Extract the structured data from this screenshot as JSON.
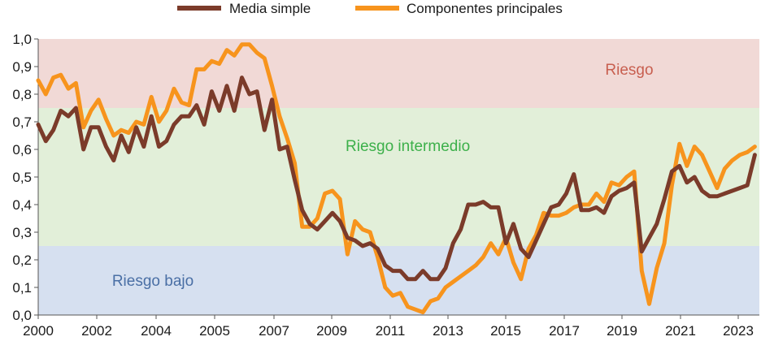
{
  "chart_data": {
    "type": "line",
    "legend": {
      "placement": "top",
      "items": [
        {
          "label": "Media simple",
          "color": "#7b3b2a"
        },
        {
          "label": "Componentes principales",
          "color": "#f7941d"
        }
      ]
    },
    "zones": [
      {
        "label": "Riesgo",
        "from": 0.75,
        "to": 1.0,
        "color": "#f1d9d6",
        "label_color": "#c85f50"
      },
      {
        "label": "Riesgo intermedio",
        "from": 0.25,
        "to": 0.75,
        "color": "#e2efd9",
        "label_color": "#3cb04a"
      },
      {
        "label": "Riesgo bajo",
        "from": 0.0,
        "to": 0.25,
        "color": "#d6e0f0",
        "label_color": "#4a6fa5"
      }
    ],
    "ylim": [
      0,
      1
    ],
    "xlim": [
      2000,
      2023.9
    ],
    "y_ticks": [
      "0,0",
      "0,1",
      "0,2",
      "0,3",
      "0,4",
      "0,5",
      "0,6",
      "0,7",
      "0,8",
      "0,9",
      "1,0"
    ],
    "x_ticks": [
      "2000",
      "2002",
      "2004",
      "2005",
      "2007",
      "2009",
      "2011",
      "2013",
      "2015",
      "2017",
      "2019",
      "2021",
      "2023"
    ],
    "series": [
      {
        "name": "Media simple",
        "color": "#7b3b2a",
        "x": [
          2000.0,
          2000.25,
          2000.5,
          2000.75,
          2001.0,
          2001.25,
          2001.5,
          2001.75,
          2002.0,
          2002.25,
          2002.5,
          2002.75,
          2003.0,
          2003.25,
          2003.5,
          2003.75,
          2004.0,
          2004.25,
          2004.5,
          2004.75,
          2005.0,
          2005.25,
          2005.5,
          2005.75,
          2006.0,
          2006.25,
          2006.5,
          2006.75,
          2007.0,
          2007.25,
          2007.5,
          2007.75,
          2008.0,
          2008.25,
          2008.5,
          2008.75,
          2009.0,
          2009.25,
          2009.5,
          2009.75,
          2010.0,
          2010.25,
          2010.5,
          2010.75,
          2011.0,
          2011.25,
          2011.5,
          2011.75,
          2012.0,
          2012.25,
          2012.5,
          2012.75,
          2013.0,
          2013.25,
          2013.5,
          2013.75,
          2014.0,
          2014.25,
          2014.5,
          2014.75,
          2015.0,
          2015.25,
          2015.5,
          2015.75,
          2016.0,
          2016.25,
          2016.5,
          2016.75,
          2017.0,
          2017.25,
          2017.5,
          2017.75,
          2018.0,
          2018.25,
          2018.5,
          2018.75,
          2019.0,
          2019.25,
          2019.5,
          2019.75,
          2020.0,
          2020.25,
          2020.5,
          2020.75,
          2021.0,
          2021.25,
          2021.5,
          2021.75,
          2022.0,
          2022.25,
          2022.5,
          2022.75,
          2023.0,
          2023.25,
          2023.5,
          2023.75
        ],
        "values": [
          0.69,
          0.63,
          0.67,
          0.74,
          0.72,
          0.75,
          0.6,
          0.68,
          0.68,
          0.61,
          0.56,
          0.65,
          0.59,
          0.68,
          0.61,
          0.72,
          0.61,
          0.63,
          0.69,
          0.72,
          0.72,
          0.76,
          0.69,
          0.81,
          0.74,
          0.83,
          0.74,
          0.86,
          0.8,
          0.81,
          0.67,
          0.78,
          0.6,
          0.61,
          0.49,
          0.38,
          0.33,
          0.31,
          0.34,
          0.37,
          0.34,
          0.28,
          0.27,
          0.25,
          0.26,
          0.24,
          0.18,
          0.16,
          0.16,
          0.13,
          0.13,
          0.16,
          0.13,
          0.13,
          0.17,
          0.26,
          0.31,
          0.4,
          0.4,
          0.41,
          0.39,
          0.39,
          0.26,
          0.33,
          0.24,
          0.21,
          0.27,
          0.33,
          0.39,
          0.4,
          0.44,
          0.51,
          0.38,
          0.38,
          0.39,
          0.37,
          0.43,
          0.45,
          0.46,
          0.48,
          0.23,
          0.28,
          0.33,
          0.42,
          0.52,
          0.54,
          0.48,
          0.5,
          0.45,
          0.43,
          0.43,
          0.44,
          0.45,
          0.46,
          0.47,
          0.58
        ]
      },
      {
        "name": "Componentes principales",
        "color": "#f7941d",
        "x": [
          2000.0,
          2000.25,
          2000.5,
          2000.75,
          2001.0,
          2001.25,
          2001.5,
          2001.75,
          2002.0,
          2002.25,
          2002.5,
          2002.75,
          2003.0,
          2003.25,
          2003.5,
          2003.75,
          2004.0,
          2004.25,
          2004.5,
          2004.75,
          2005.0,
          2005.25,
          2005.5,
          2005.75,
          2006.0,
          2006.25,
          2006.5,
          2006.75,
          2007.0,
          2007.25,
          2007.5,
          2007.75,
          2008.0,
          2008.25,
          2008.5,
          2008.75,
          2009.0,
          2009.25,
          2009.5,
          2009.75,
          2010.0,
          2010.25,
          2010.5,
          2010.75,
          2011.0,
          2011.25,
          2011.5,
          2011.75,
          2012.0,
          2012.25,
          2012.5,
          2012.75,
          2013.0,
          2013.25,
          2013.5,
          2013.75,
          2014.0,
          2014.25,
          2014.5,
          2014.75,
          2015.0,
          2015.25,
          2015.5,
          2015.75,
          2016.0,
          2016.25,
          2016.5,
          2016.75,
          2017.0,
          2017.25,
          2017.5,
          2017.75,
          2018.0,
          2018.25,
          2018.5,
          2018.75,
          2019.0,
          2019.25,
          2019.5,
          2019.75,
          2020.0,
          2020.25,
          2020.5,
          2020.75,
          2021.0,
          2021.25,
          2021.5,
          2021.75,
          2022.0,
          2022.25,
          2022.5,
          2022.75,
          2023.0,
          2023.25,
          2023.5,
          2023.75
        ],
        "values": [
          0.85,
          0.8,
          0.86,
          0.87,
          0.82,
          0.84,
          0.68,
          0.74,
          0.78,
          0.71,
          0.65,
          0.67,
          0.66,
          0.7,
          0.69,
          0.79,
          0.7,
          0.74,
          0.82,
          0.77,
          0.76,
          0.89,
          0.89,
          0.92,
          0.91,
          0.96,
          0.94,
          0.98,
          0.98,
          0.95,
          0.93,
          0.83,
          0.72,
          0.64,
          0.55,
          0.32,
          0.32,
          0.35,
          0.44,
          0.45,
          0.42,
          0.22,
          0.34,
          0.31,
          0.3,
          0.21,
          0.1,
          0.07,
          0.08,
          0.03,
          0.02,
          0.01,
          0.05,
          0.06,
          0.1,
          0.12,
          0.14,
          0.16,
          0.18,
          0.21,
          0.26,
          0.22,
          0.28,
          0.19,
          0.13,
          0.24,
          0.29,
          0.37,
          0.36,
          0.36,
          0.37,
          0.39,
          0.4,
          0.4,
          0.44,
          0.41,
          0.48,
          0.47,
          0.5,
          0.52,
          0.16,
          0.04,
          0.17,
          0.26,
          0.47,
          0.62,
          0.54,
          0.61,
          0.58,
          0.52,
          0.46,
          0.53,
          0.56,
          0.58,
          0.59,
          0.61
        ]
      }
    ]
  }
}
